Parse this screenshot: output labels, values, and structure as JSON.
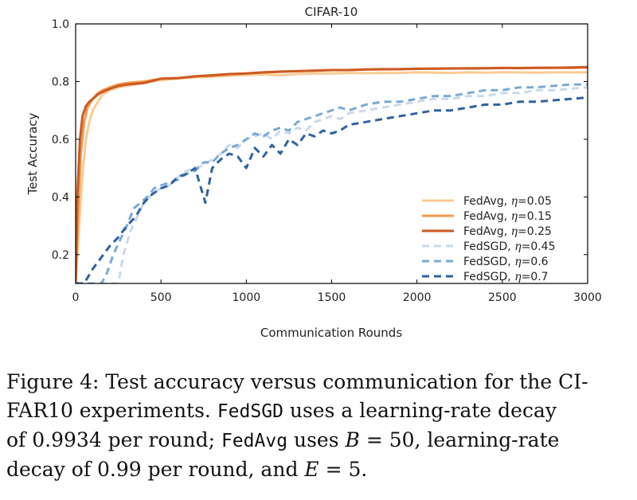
{
  "chart_data": {
    "type": "line",
    "title": "CIFAR-10",
    "xlabel": "Communication Rounds",
    "ylabel": "Test Accuracy",
    "xlim": [
      0,
      3000
    ],
    "ylim": [
      0.1,
      1.0
    ],
    "xticks": [
      0,
      500,
      1000,
      1500,
      2000,
      2500,
      3000
    ],
    "yticks": [
      0.2,
      0.4,
      0.6,
      0.8,
      1.0
    ],
    "xtick_labels": [
      "0",
      "500",
      "1000",
      "1500",
      "2000",
      "2500",
      "3000"
    ],
    "ytick_labels": [
      "0.2",
      "0.4",
      "0.6",
      "0.8",
      "1.0"
    ],
    "grid": false,
    "legend_position": "lower-right",
    "series": [
      {
        "name": "FedAvg, η=0.05",
        "name_prefix": "FedAvg, ",
        "name_suffix": "=0.05",
        "color": "#f9cb93",
        "style": "solid",
        "points": [
          [
            0,
            0.1
          ],
          [
            20,
            0.3
          ],
          [
            40,
            0.48
          ],
          [
            60,
            0.6
          ],
          [
            80,
            0.66
          ],
          [
            100,
            0.7
          ],
          [
            130,
            0.73
          ],
          [
            160,
            0.755
          ],
          [
            200,
            0.77
          ],
          [
            250,
            0.78
          ],
          [
            300,
            0.785
          ],
          [
            400,
            0.795
          ],
          [
            500,
            0.805
          ],
          [
            600,
            0.81
          ],
          [
            700,
            0.815
          ],
          [
            800,
            0.817
          ],
          [
            900,
            0.82
          ],
          [
            1000,
            0.823
          ],
          [
            1100,
            0.825
          ],
          [
            1200,
            0.822
          ],
          [
            1300,
            0.826
          ],
          [
            1400,
            0.828
          ],
          [
            1500,
            0.828
          ],
          [
            1600,
            0.83
          ],
          [
            1700,
            0.829
          ],
          [
            1800,
            0.83
          ],
          [
            1900,
            0.83
          ],
          [
            2000,
            0.832
          ],
          [
            2100,
            0.831
          ],
          [
            2200,
            0.83
          ],
          [
            2300,
            0.832
          ],
          [
            2400,
            0.831
          ],
          [
            2500,
            0.832
          ],
          [
            2600,
            0.832
          ],
          [
            2700,
            0.831
          ],
          [
            2800,
            0.832
          ],
          [
            2900,
            0.832
          ],
          [
            3000,
            0.832
          ]
        ]
      },
      {
        "name": "FedAvg, η=0.15",
        "name_prefix": "FedAvg, ",
        "name_suffix": "=0.15",
        "color": "#f29a4f",
        "style": "solid",
        "points": [
          [
            0,
            0.1
          ],
          [
            15,
            0.35
          ],
          [
            30,
            0.55
          ],
          [
            50,
            0.66
          ],
          [
            70,
            0.71
          ],
          [
            100,
            0.74
          ],
          [
            130,
            0.76
          ],
          [
            160,
            0.77
          ],
          [
            200,
            0.78
          ],
          [
            250,
            0.79
          ],
          [
            300,
            0.795
          ],
          [
            400,
            0.8
          ],
          [
            500,
            0.81
          ],
          [
            600,
            0.812
          ],
          [
            700,
            0.818
          ],
          [
            800,
            0.82
          ],
          [
            900,
            0.825
          ],
          [
            1000,
            0.828
          ],
          [
            1100,
            0.832
          ],
          [
            1200,
            0.835
          ],
          [
            1300,
            0.836
          ],
          [
            1400,
            0.838
          ],
          [
            1500,
            0.84
          ],
          [
            1600,
            0.84
          ],
          [
            1700,
            0.842
          ],
          [
            1800,
            0.842
          ],
          [
            1900,
            0.843
          ],
          [
            2000,
            0.845
          ],
          [
            2100,
            0.844
          ],
          [
            2200,
            0.846
          ],
          [
            2300,
            0.845
          ],
          [
            2400,
            0.846
          ],
          [
            2500,
            0.847
          ],
          [
            2600,
            0.846
          ],
          [
            2700,
            0.847
          ],
          [
            2800,
            0.848
          ],
          [
            2900,
            0.847
          ],
          [
            3000,
            0.849
          ]
        ]
      },
      {
        "name": "FedAvg, η=0.25",
        "name_prefix": "FedAvg, ",
        "name_suffix": "=0.25",
        "color": "#cc5a22",
        "style": "solid",
        "points": [
          [
            0,
            0.1
          ],
          [
            10,
            0.4
          ],
          [
            25,
            0.6
          ],
          [
            40,
            0.68
          ],
          [
            60,
            0.715
          ],
          [
            80,
            0.73
          ],
          [
            100,
            0.74
          ],
          [
            130,
            0.755
          ],
          [
            160,
            0.765
          ],
          [
            200,
            0.775
          ],
          [
            250,
            0.785
          ],
          [
            300,
            0.79
          ],
          [
            400,
            0.795
          ],
          [
            500,
            0.81
          ],
          [
            600,
            0.812
          ],
          [
            700,
            0.818
          ],
          [
            800,
            0.822
          ],
          [
            900,
            0.826
          ],
          [
            1000,
            0.828
          ],
          [
            1100,
            0.832
          ],
          [
            1200,
            0.834
          ],
          [
            1300,
            0.836
          ],
          [
            1400,
            0.838
          ],
          [
            1500,
            0.84
          ],
          [
            1600,
            0.84
          ],
          [
            1700,
            0.842
          ],
          [
            1800,
            0.843
          ],
          [
            1900,
            0.843
          ],
          [
            2000,
            0.844
          ],
          [
            2100,
            0.845
          ],
          [
            2200,
            0.845
          ],
          [
            2300,
            0.846
          ],
          [
            2400,
            0.846
          ],
          [
            2500,
            0.847
          ],
          [
            2600,
            0.847
          ],
          [
            2700,
            0.848
          ],
          [
            2800,
            0.848
          ],
          [
            2900,
            0.849
          ],
          [
            3000,
            0.85
          ]
        ]
      },
      {
        "name": "FedSGD, η=0.45",
        "name_prefix": "FedSGD, ",
        "name_suffix": "=0.45",
        "color": "#c9d9ec",
        "style": "dashed",
        "points": [
          [
            0,
            0.1
          ],
          [
            100,
            0.1
          ],
          [
            200,
            0.1
          ],
          [
            250,
            0.1
          ],
          [
            280,
            0.2
          ],
          [
            320,
            0.28
          ],
          [
            360,
            0.33
          ],
          [
            400,
            0.38
          ],
          [
            450,
            0.41
          ],
          [
            500,
            0.43
          ],
          [
            550,
            0.44
          ],
          [
            600,
            0.47
          ],
          [
            650,
            0.49
          ],
          [
            700,
            0.5
          ],
          [
            750,
            0.51
          ],
          [
            800,
            0.53
          ],
          [
            850,
            0.55
          ],
          [
            900,
            0.58
          ],
          [
            950,
            0.57
          ],
          [
            1000,
            0.6
          ],
          [
            1050,
            0.61
          ],
          [
            1100,
            0.62
          ],
          [
            1150,
            0.6
          ],
          [
            1200,
            0.63
          ],
          [
            1250,
            0.62
          ],
          [
            1300,
            0.64
          ],
          [
            1350,
            0.63
          ],
          [
            1400,
            0.66
          ],
          [
            1450,
            0.67
          ],
          [
            1500,
            0.68
          ],
          [
            1550,
            0.67
          ],
          [
            1600,
            0.69
          ],
          [
            1700,
            0.7
          ],
          [
            1800,
            0.71
          ],
          [
            1900,
            0.72
          ],
          [
            2000,
            0.73
          ],
          [
            2100,
            0.74
          ],
          [
            2200,
            0.74
          ],
          [
            2300,
            0.75
          ],
          [
            2400,
            0.75
          ],
          [
            2500,
            0.76
          ],
          [
            2600,
            0.76
          ],
          [
            2700,
            0.77
          ],
          [
            2800,
            0.77
          ],
          [
            2900,
            0.775
          ],
          [
            3000,
            0.78
          ]
        ]
      },
      {
        "name": "FedSGD, η=0.6",
        "name_prefix": "FedSGD, ",
        "name_suffix": "=0.6",
        "color": "#7aaad4",
        "style": "dashed",
        "points": [
          [
            0,
            0.1
          ],
          [
            100,
            0.1
          ],
          [
            150,
            0.1
          ],
          [
            180,
            0.13
          ],
          [
            220,
            0.2
          ],
          [
            260,
            0.25
          ],
          [
            300,
            0.3
          ],
          [
            340,
            0.36
          ],
          [
            380,
            0.38
          ],
          [
            420,
            0.4
          ],
          [
            460,
            0.43
          ],
          [
            500,
            0.44
          ],
          [
            550,
            0.45
          ],
          [
            600,
            0.46
          ],
          [
            650,
            0.48
          ],
          [
            700,
            0.49
          ],
          [
            750,
            0.52
          ],
          [
            800,
            0.52
          ],
          [
            850,
            0.55
          ],
          [
            900,
            0.57
          ],
          [
            950,
            0.58
          ],
          [
            1000,
            0.6
          ],
          [
            1050,
            0.62
          ],
          [
            1100,
            0.61
          ],
          [
            1150,
            0.63
          ],
          [
            1200,
            0.64
          ],
          [
            1250,
            0.63
          ],
          [
            1300,
            0.66
          ],
          [
            1350,
            0.67
          ],
          [
            1400,
            0.68
          ],
          [
            1450,
            0.69
          ],
          [
            1500,
            0.7
          ],
          [
            1550,
            0.71
          ],
          [
            1600,
            0.7
          ],
          [
            1700,
            0.72
          ],
          [
            1800,
            0.73
          ],
          [
            1900,
            0.73
          ],
          [
            2000,
            0.74
          ],
          [
            2100,
            0.75
          ],
          [
            2200,
            0.75
          ],
          [
            2300,
            0.76
          ],
          [
            2400,
            0.77
          ],
          [
            2500,
            0.77
          ],
          [
            2600,
            0.78
          ],
          [
            2700,
            0.78
          ],
          [
            2800,
            0.785
          ],
          [
            2900,
            0.79
          ],
          [
            3000,
            0.79
          ]
        ]
      },
      {
        "name": "FedSGD, η=0.7",
        "name_prefix": "FedSGD, ",
        "name_suffix": "=0.7",
        "color": "#2e62a0",
        "style": "dashed",
        "points": [
          [
            0,
            0.1
          ],
          [
            50,
            0.1
          ],
          [
            100,
            0.15
          ],
          [
            150,
            0.19
          ],
          [
            200,
            0.23
          ],
          [
            250,
            0.26
          ],
          [
            300,
            0.3
          ],
          [
            350,
            0.33
          ],
          [
            400,
            0.38
          ],
          [
            450,
            0.41
          ],
          [
            500,
            0.43
          ],
          [
            550,
            0.44
          ],
          [
            600,
            0.47
          ],
          [
            650,
            0.48
          ],
          [
            700,
            0.5
          ],
          [
            740,
            0.42
          ],
          [
            760,
            0.38
          ],
          [
            800,
            0.5
          ],
          [
            850,
            0.53
          ],
          [
            900,
            0.55
          ],
          [
            950,
            0.54
          ],
          [
            1000,
            0.5
          ],
          [
            1050,
            0.57
          ],
          [
            1100,
            0.54
          ],
          [
            1150,
            0.58
          ],
          [
            1200,
            0.55
          ],
          [
            1250,
            0.6
          ],
          [
            1300,
            0.58
          ],
          [
            1350,
            0.62
          ],
          [
            1400,
            0.61
          ],
          [
            1450,
            0.63
          ],
          [
            1500,
            0.62
          ],
          [
            1550,
            0.63
          ],
          [
            1600,
            0.65
          ],
          [
            1700,
            0.66
          ],
          [
            1800,
            0.67
          ],
          [
            1900,
            0.68
          ],
          [
            2000,
            0.69
          ],
          [
            2100,
            0.7
          ],
          [
            2200,
            0.7
          ],
          [
            2300,
            0.71
          ],
          [
            2400,
            0.72
          ],
          [
            2500,
            0.72
          ],
          [
            2600,
            0.73
          ],
          [
            2700,
            0.73
          ],
          [
            2800,
            0.735
          ],
          [
            2900,
            0.74
          ],
          [
            3000,
            0.745
          ]
        ]
      }
    ]
  },
  "caption": {
    "line1": "Figure 4: Test accuracy versus communication for the CI-",
    "line2_a": "FAR10 experiments. ",
    "line2_mono": "FedSGD",
    "line2_b": " uses a learning-rate decay",
    "line3_a": "of 0.9934 per round; ",
    "line3_mono": "FedAvg",
    "line3_b": " uses ",
    "line3_math_var": "B",
    "line3_math_rest": " = 50",
    "line3_c": ", learning-rate",
    "line4_a": "decay of 0.99 per round, and ",
    "line4_math_var": "E",
    "line4_math_rest": " = 5",
    "line4_b": "."
  }
}
